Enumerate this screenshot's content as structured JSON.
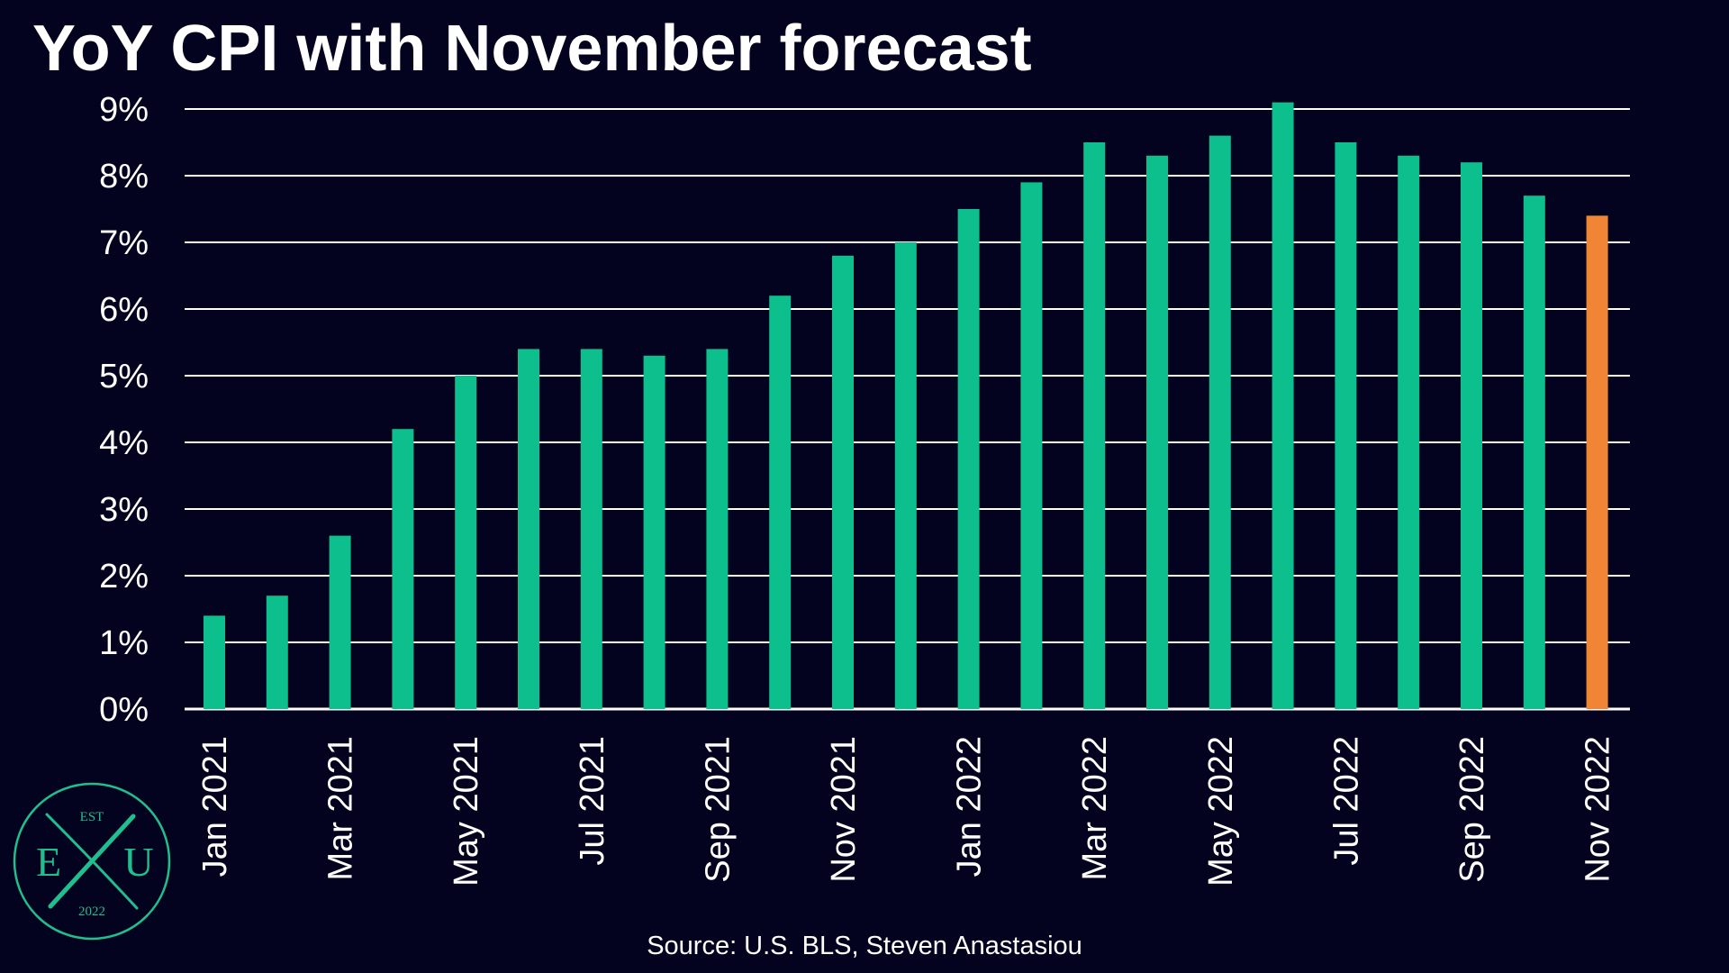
{
  "title": "YoY CPI with November forecast",
  "source": "Source: U.S. BLS, Steven Anastasiou",
  "logo": {
    "top_text": "EST",
    "letter_left": "E",
    "letter_right": "U",
    "bottom_text": "2022",
    "color": "#1fbf8f"
  },
  "colors": {
    "background": "#03031f",
    "bar": "#0dbf8c",
    "forecast_bar": "#f08535",
    "grid": "#ffffff",
    "text": "#ffffff"
  },
  "chart_data": {
    "type": "bar",
    "title": "YoY CPI with November forecast",
    "xlabel": "",
    "ylabel": "",
    "ylim": [
      0,
      9
    ],
    "yticks": [
      "0%",
      "1%",
      "2%",
      "3%",
      "4%",
      "5%",
      "6%",
      "7%",
      "8%",
      "9%"
    ],
    "grid": true,
    "legend": "none",
    "categories": [
      "Jan 2021",
      "Feb 2021",
      "Mar 2021",
      "Apr 2021",
      "May 2021",
      "Jun 2021",
      "Jul 2021",
      "Aug 2021",
      "Sep 2021",
      "Oct 2021",
      "Nov 2021",
      "Dec 2021",
      "Jan 2022",
      "Feb 2022",
      "Mar 2022",
      "Apr 2022",
      "May 2022",
      "Jun 2022",
      "Jul 2022",
      "Aug 2022",
      "Sep 2022",
      "Oct 2022",
      "Nov 2022"
    ],
    "shown_xtick_labels": [
      "Jan 2021",
      "Mar 2021",
      "May 2021",
      "Jul 2021",
      "Sep 2021",
      "Nov 2021",
      "Jan 2022",
      "Mar 2022",
      "May 2022",
      "Jul 2022",
      "Sep 2022",
      "Nov 2022"
    ],
    "values": [
      1.4,
      1.7,
      2.6,
      4.2,
      5.0,
      5.4,
      5.4,
      5.3,
      5.4,
      6.2,
      6.8,
      7.0,
      7.5,
      7.9,
      8.5,
      8.3,
      8.6,
      9.1,
      8.5,
      8.3,
      8.2,
      7.7,
      7.4
    ],
    "forecast_categories": [
      "Nov 2022"
    ]
  }
}
